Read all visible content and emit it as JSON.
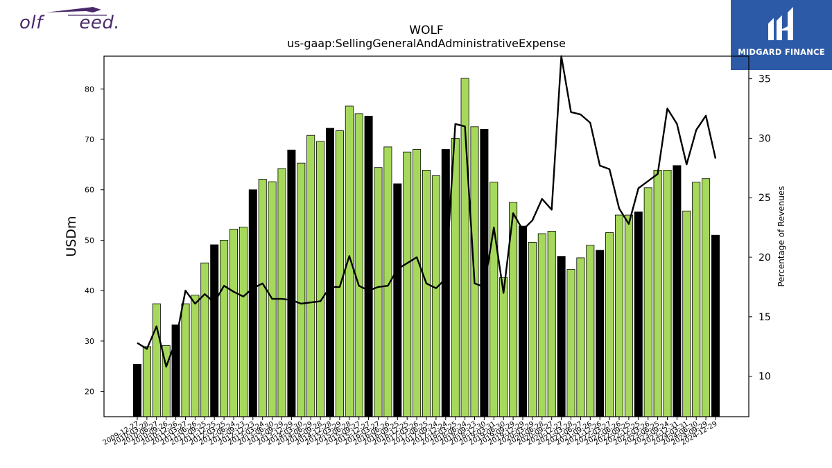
{
  "logos": {
    "left_text": "olf      eed.",
    "right_text": "MIDGARD FINANCE"
  },
  "colors": {
    "bar_default": "#a6d95b",
    "bar_q4": "#000000",
    "line": "#000000",
    "logo_purple": "#4a2a6b",
    "logo_blue": "#2d5aa6"
  },
  "chart_data": {
    "type": "bar",
    "title": "WOLF",
    "subtitle": "us-gaap:SellingGeneralAndAdministrativeExpense",
    "ylabel": "USDm",
    "y2label": "Percentage of Revenues",
    "ylim": [
      15,
      86.5
    ],
    "y2lim": [
      6.6,
      36.9
    ],
    "yticks": [
      20,
      30,
      40,
      50,
      60,
      70,
      80
    ],
    "y2ticks": [
      10,
      15,
      20,
      25,
      30,
      35
    ],
    "xtick_labels": [
      "2009-12-27",
      "2010-03-28",
      "2010-06-27",
      "2010-09-26",
      "2010-12-26",
      "2011-03-27",
      "2011-06-26",
      "2011-09-25",
      "2011-12-25",
      "2012-03-25",
      "2012-06-24",
      "2012-09-23",
      "2012-12-23",
      "2013-03-24",
      "2013-06-30",
      "2013-09-29",
      "2013-12-29",
      "2014-03-30",
      "2014-06-29",
      "2014-09-28",
      "2014-12-28",
      "2015-03-29",
      "2015-06-28",
      "2015-09-27",
      "2015-12-27",
      "2016-03-27",
      "2016-06-26",
      "2016-09-25",
      "2016-12-25",
      "2017-03-26",
      "2017-06-25",
      "2017-09-24",
      "2017-12-24",
      "2018-03-25",
      "2018-06-24",
      "2018-09-23",
      "2018-12-30",
      "2019-03-31",
      "2019-06-30",
      "2019-09-29",
      "2019-12-29",
      "2020-03-29",
      "2020-06-28",
      "2020-09-27",
      "2020-12-27",
      "2021-03-28",
      "2021-06-27",
      "2021-09-26",
      "2021-12-26",
      "2022-03-27",
      "2022-06-26",
      "2022-09-25",
      "2022-12-25",
      "2023-03-26",
      "2023-06-25",
      "2023-09-24",
      "2023-12-31",
      "2024-03-31",
      "2024-06-30",
      "2024-09-29",
      "2024-12-29"
    ],
    "categories": [
      "2009-12-27",
      "2010-03-28",
      "2010-06-27",
      "2010-09-26",
      "2010-12-26",
      "2011-03-27",
      "2011-06-26",
      "2011-09-25",
      "2011-12-25",
      "2012-03-25",
      "2012-06-24",
      "2012-09-23",
      "2012-12-23",
      "2013-03-24",
      "2013-06-30",
      "2013-09-29",
      "2013-12-29",
      "2014-03-30",
      "2014-06-29",
      "2014-09-28",
      "2014-12-28",
      "2015-03-29",
      "2015-06-28",
      "2015-09-27",
      "2015-12-27",
      "2016-03-27",
      "2016-06-26",
      "2016-09-25",
      "2016-12-25",
      "2017-03-26",
      "2017-06-25",
      "2017-09-24",
      "2017-12-24",
      "2018-03-25",
      "2018-06-24",
      "2018-09-23",
      "2018-12-30",
      "2019-03-31",
      "2019-06-30",
      "2019-09-29",
      "2019-12-29",
      "2020-03-29",
      "2020-06-28",
      "2020-09-27",
      "2020-12-27",
      "2021-03-28",
      "2021-06-27",
      "2021-09-26",
      "2021-12-26",
      "2022-03-27",
      "2022-06-26",
      "2022-09-25",
      "2022-12-25",
      "2023-03-26",
      "2023-06-25",
      "2023-09-24",
      "2023-12-31",
      "2024-03-31",
      "2024-06-30",
      "2024-09-29",
      "2024-12-29"
    ],
    "bar_values": [
      25.4,
      28.9,
      37.4,
      29.1,
      33.2,
      37.4,
      39.1,
      45.5,
      49.1,
      50.0,
      52.2,
      52.6,
      60.0,
      62.1,
      61.6,
      64.2,
      67.9,
      65.3,
      70.8,
      69.6,
      72.2,
      71.7,
      76.6,
      75.1,
      74.6,
      64.4,
      68.5,
      61.2,
      67.5,
      68.0,
      63.9,
      62.8,
      68.0,
      70.2,
      82.1,
      72.5,
      72.0,
      61.5,
      42.6,
      57.5,
      52.8,
      49.6,
      51.3,
      51.8,
      46.8,
      44.2,
      46.5,
      49.0,
      48.0,
      51.5,
      55.0,
      55.0,
      55.6,
      60.4,
      63.9,
      63.9,
      64.8,
      55.8,
      61.5,
      62.2,
      51.0
    ],
    "bar_is_q4": [
      true,
      false,
      false,
      false,
      true,
      false,
      false,
      false,
      true,
      false,
      false,
      false,
      true,
      false,
      false,
      false,
      true,
      false,
      false,
      false,
      true,
      false,
      false,
      false,
      true,
      false,
      false,
      true,
      false,
      false,
      false,
      false,
      true,
      false,
      false,
      false,
      true,
      false,
      false,
      false,
      true,
      false,
      false,
      false,
      true,
      false,
      false,
      false,
      true,
      false,
      false,
      false,
      true,
      false,
      false,
      false,
      true,
      false,
      false,
      false,
      true
    ],
    "line_values": [
      12.8,
      12.3,
      14.2,
      10.8,
      13.0,
      17.2,
      16.1,
      16.9,
      16.2,
      17.6,
      17.1,
      16.7,
      17.4,
      17.8,
      16.5,
      16.5,
      16.4,
      16.1,
      16.2,
      16.3,
      17.5,
      17.5,
      20.1,
      17.6,
      17.2,
      17.5,
      17.6,
      19.0,
      19.5,
      20.0,
      17.8,
      17.4,
      18.2,
      31.2,
      31.0,
      17.8,
      17.5,
      22.5,
      17.0,
      23.7,
      22.3,
      23.1,
      24.9,
      24.0,
      36.9,
      32.2,
      32.0,
      31.3,
      27.7,
      27.4,
      24.1,
      22.8,
      25.8,
      26.4,
      27.0,
      32.5,
      31.2,
      27.8,
      30.7,
      31.9,
      28.3
    ]
  }
}
